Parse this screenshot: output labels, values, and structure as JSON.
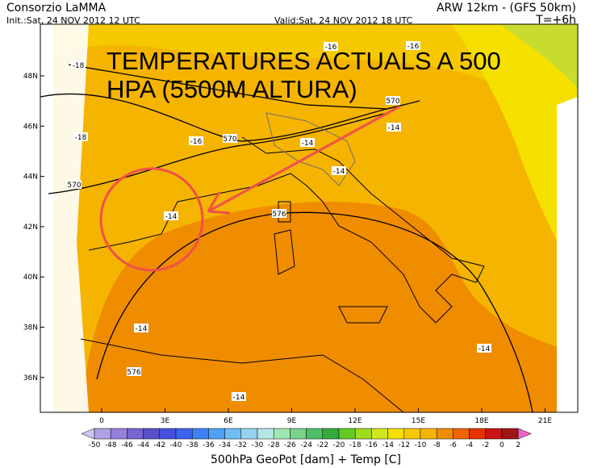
{
  "header": {
    "source": "Consorzio LaMMA",
    "model": "ARW 12km  -  (GFS 50km)",
    "init": "Init.:Sat, 24 NOV 2012  12 UTC",
    "valid": "Valid:Sat, 24 NOV 2012  18 UTC",
    "lead": "T=+6h"
  },
  "annotation": {
    "line1": "TEMPERATURES ACTUALS A 500",
    "line2": "HPA (5500M ALTURA)"
  },
  "lat_labels": [
    "48N",
    "46N",
    "44N",
    "42N",
    "40N",
    "38N",
    "36N"
  ],
  "lon_labels": [
    "0",
    "3E",
    "6E",
    "9E",
    "12E",
    "15E",
    "18E",
    "21E"
  ],
  "contour_labels": [
    "-18",
    "-16",
    "-16",
    "570",
    "-14",
    "-18",
    "-16",
    "570",
    "-14",
    "-14",
    "570",
    "-14",
    "576",
    "-14",
    "-14",
    "576",
    "-14"
  ],
  "colorbar": {
    "labels": [
      "-50",
      "-48",
      "-46",
      "-44",
      "-42",
      "-40",
      "-38",
      "-36",
      "-34",
      "-32",
      "-30",
      "-28",
      "-26",
      "-24",
      "-22",
      "-20",
      "-18",
      "-16",
      "-14",
      "-12",
      "-10",
      "-8",
      "-6",
      "-4",
      "-2",
      "0",
      "2"
    ],
    "caption": "500hPa GeoPot [dam] + Temp [C]"
  }
}
